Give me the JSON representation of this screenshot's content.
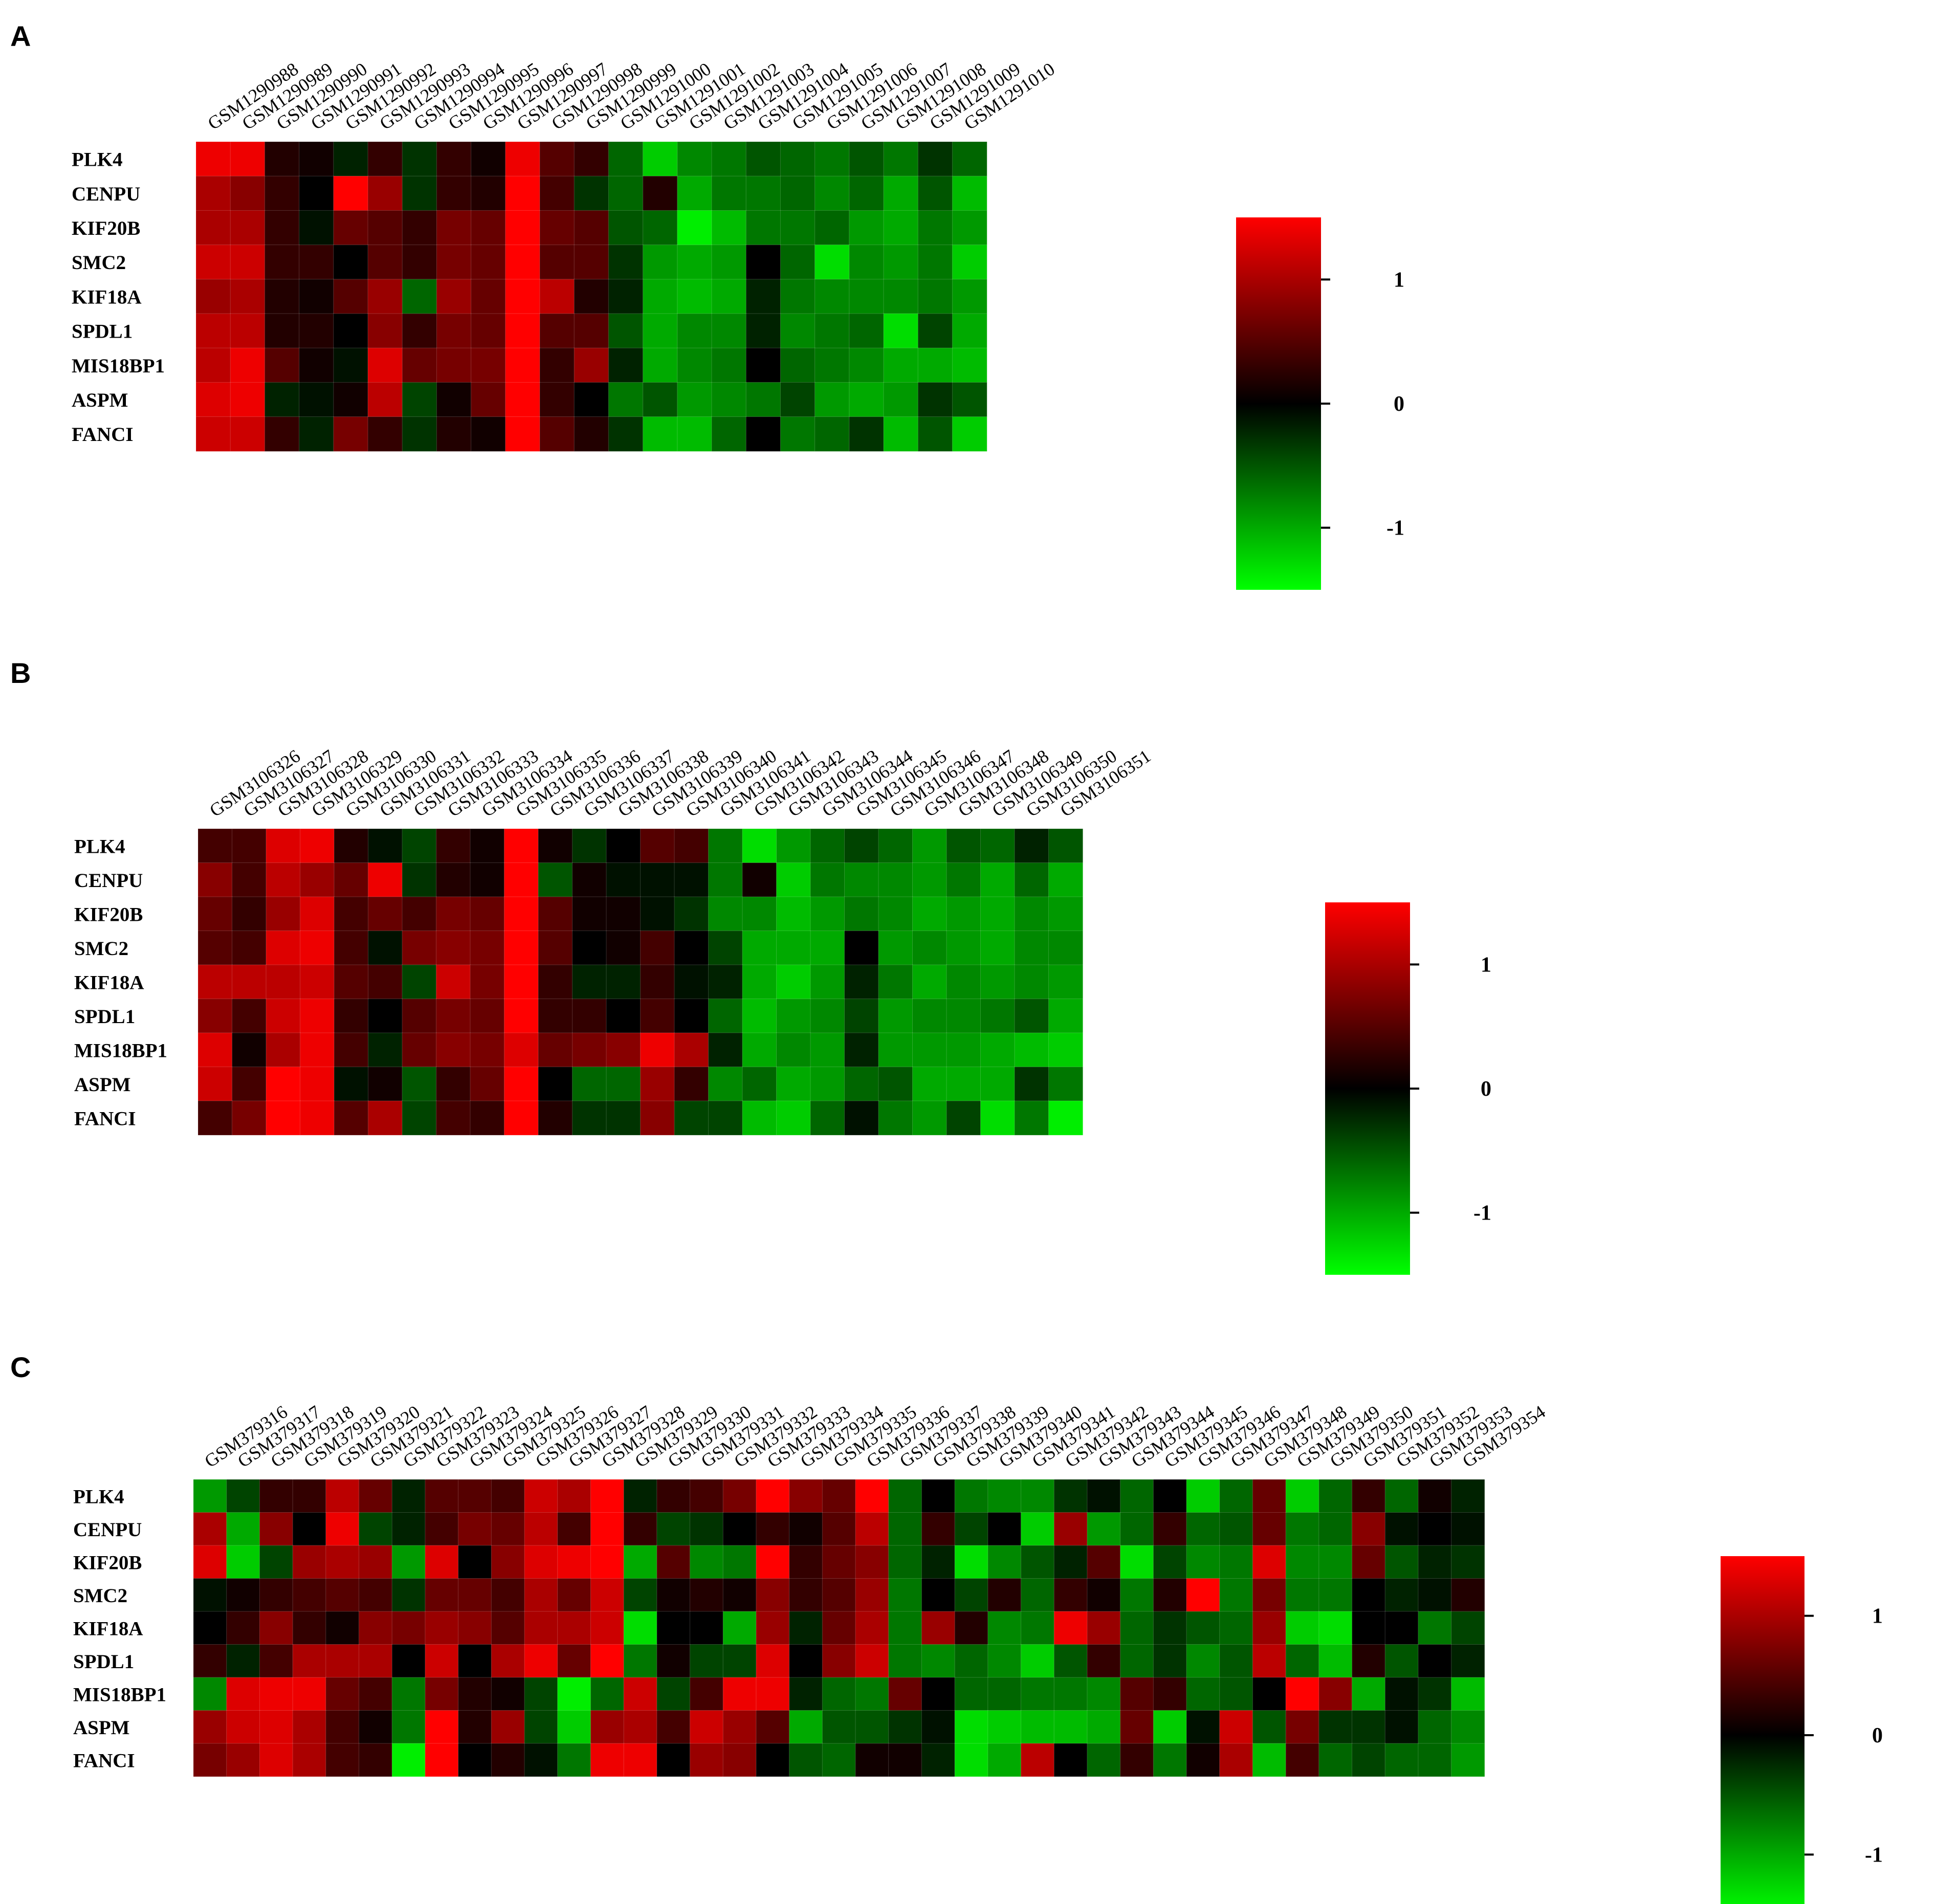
{
  "colors": {
    "high": "#ff0000",
    "mid": "#000000",
    "low": "#00ff00"
  },
  "rows": [
    "PLK4",
    "CENPU",
    "KIF20B",
    "SMC2",
    "KIF18A",
    "SPDL1",
    "MIS18BP1",
    "ASPM",
    "FANCI"
  ],
  "chart_data": [
    {
      "type": "heatmap",
      "panel": "A",
      "columns": [
        "GSM1290988",
        "GSM1290989",
        "GSM1290990",
        "GSM1290991",
        "GSM1290992",
        "GSM1290993",
        "GSM1290994",
        "GSM1290995",
        "GSM1290996",
        "GSM1290997",
        "GSM1290998",
        "GSM1290999",
        "GSM1291000",
        "GSM1291001",
        "GSM1291002",
        "GSM1291003",
        "GSM1291004",
        "GSM1291005",
        "GSM1291006",
        "GSM1291007",
        "GSM1291008",
        "GSM1291009",
        "GSM1291010"
      ],
      "values": [
        [
          1.4,
          1.4,
          0.2,
          0.1,
          -0.2,
          0.3,
          -0.3,
          0.3,
          0.1,
          1.4,
          0.5,
          0.3,
          -0.6,
          -1.2,
          -0.8,
          -0.7,
          -0.5,
          -0.6,
          -0.7,
          -0.5,
          -0.7,
          -0.3,
          -0.6
        ],
        [
          1.0,
          0.8,
          0.3,
          0.0,
          1.5,
          0.9,
          -0.3,
          0.3,
          0.2,
          1.5,
          0.4,
          -0.3,
          -0.6,
          0.2,
          -1.0,
          -0.7,
          -0.7,
          -0.6,
          -0.8,
          -0.6,
          -1.0,
          -0.5,
          -1.1
        ],
        [
          1.0,
          1.0,
          0.3,
          -0.1,
          0.6,
          0.5,
          0.3,
          0.7,
          0.6,
          1.5,
          0.6,
          0.5,
          -0.5,
          -0.6,
          -1.4,
          -1.1,
          -0.7,
          -0.7,
          -0.6,
          -0.9,
          -1.0,
          -0.7,
          -0.9
        ],
        [
          1.2,
          1.2,
          0.3,
          0.3,
          0.0,
          0.5,
          0.3,
          0.7,
          0.6,
          1.5,
          0.5,
          0.5,
          -0.3,
          -0.9,
          -1.0,
          -0.9,
          0.0,
          -0.6,
          -1.3,
          -0.8,
          -0.9,
          -0.7,
          -1.2
        ],
        [
          0.9,
          1.0,
          0.2,
          0.1,
          0.5,
          0.9,
          -0.6,
          0.9,
          0.6,
          1.5,
          1.1,
          0.2,
          -0.2,
          -1.0,
          -1.1,
          -1.0,
          -0.2,
          -0.7,
          -0.8,
          -0.8,
          -0.8,
          -0.7,
          -0.9
        ],
        [
          1.1,
          1.1,
          0.2,
          0.2,
          0.0,
          0.8,
          0.3,
          0.7,
          0.6,
          1.5,
          0.5,
          0.5,
          -0.5,
          -1.0,
          -0.8,
          -0.8,
          -0.2,
          -0.8,
          -0.7,
          -0.6,
          -1.3,
          -0.4,
          -1.0
        ],
        [
          1.1,
          1.4,
          0.5,
          0.1,
          -0.1,
          1.3,
          0.6,
          0.7,
          0.7,
          1.5,
          0.3,
          0.9,
          -0.2,
          -1.0,
          -0.8,
          -0.7,
          0.0,
          -0.6,
          -0.7,
          -0.8,
          -1.0,
          -1.0,
          -1.1
        ],
        [
          1.3,
          1.4,
          -0.2,
          -0.1,
          0.1,
          1.1,
          -0.4,
          0.1,
          0.6,
          1.5,
          0.3,
          0.0,
          -0.7,
          -0.5,
          -0.9,
          -0.8,
          -0.7,
          -0.4,
          -0.9,
          -1.0,
          -0.9,
          -0.3,
          -0.5
        ],
        [
          1.2,
          1.2,
          0.3,
          -0.2,
          0.7,
          0.3,
          -0.3,
          0.2,
          0.1,
          1.5,
          0.5,
          0.2,
          -0.3,
          -1.1,
          -1.1,
          -0.6,
          0.0,
          -0.7,
          -0.6,
          -0.3,
          -1.1,
          -0.5,
          -1.2
        ]
      ],
      "legend_ticks": [
        "1",
        "0",
        "-1"
      ]
    },
    {
      "type": "heatmap",
      "panel": "B",
      "columns": [
        "GSM3106326",
        "GSM3106327",
        "GSM3106328",
        "GSM3106329",
        "GSM3106330",
        "GSM3106331",
        "GSM3106332",
        "GSM3106333",
        "GSM3106334",
        "GSM3106335",
        "GSM3106336",
        "GSM3106337",
        "GSM3106338",
        "GSM3106339",
        "GSM3106340",
        "GSM3106341",
        "GSM3106342",
        "GSM3106343",
        "GSM3106344",
        "GSM3106345",
        "GSM3106346",
        "GSM3106347",
        "GSM3106348",
        "GSM3106349",
        "GSM3106350",
        "GSM3106351"
      ],
      "values": [
        [
          0.4,
          0.4,
          1.3,
          1.4,
          0.2,
          -0.1,
          -0.4,
          0.3,
          0.1,
          1.5,
          0.1,
          -0.3,
          0.0,
          0.5,
          0.4,
          -0.7,
          -1.3,
          -0.9,
          -0.6,
          -0.4,
          -0.6,
          -0.9,
          -0.5,
          -0.6,
          -0.2,
          -0.5
        ],
        [
          0.8,
          0.4,
          1.1,
          0.9,
          0.6,
          1.4,
          -0.3,
          0.2,
          0.1,
          1.5,
          -0.5,
          0.1,
          -0.1,
          -0.1,
          -0.1,
          -0.7,
          0.1,
          -1.2,
          -0.7,
          -0.8,
          -0.8,
          -0.9,
          -0.7,
          -1.0,
          -0.6,
          -1.0
        ],
        [
          0.6,
          0.3,
          0.9,
          1.3,
          0.4,
          0.6,
          0.4,
          0.7,
          0.6,
          1.5,
          0.5,
          0.1,
          0.1,
          -0.1,
          -0.3,
          -0.8,
          -0.8,
          -1.1,
          -0.9,
          -0.7,
          -0.8,
          -1.0,
          -0.9,
          -1.0,
          -0.8,
          -0.9
        ],
        [
          0.5,
          0.4,
          1.3,
          1.4,
          0.4,
          -0.1,
          0.7,
          0.8,
          0.7,
          1.5,
          0.5,
          0.0,
          0.1,
          0.4,
          0.0,
          -0.4,
          -1.0,
          -1.0,
          -1.0,
          0.0,
          -0.9,
          -0.8,
          -0.9,
          -1.0,
          -0.8,
          -0.8
        ],
        [
          1.1,
          1.1,
          1.1,
          1.2,
          0.5,
          0.4,
          -0.4,
          1.2,
          0.7,
          1.5,
          0.3,
          -0.2,
          -0.2,
          0.3,
          -0.1,
          -0.2,
          -1.0,
          -1.2,
          -0.9,
          -0.2,
          -0.7,
          -1.0,
          -0.8,
          -0.9,
          -0.8,
          -0.9
        ],
        [
          0.8,
          0.4,
          1.2,
          1.4,
          0.3,
          0.0,
          0.5,
          0.7,
          0.6,
          1.5,
          0.3,
          0.3,
          0.0,
          0.4,
          0.0,
          -0.6,
          -1.1,
          -0.9,
          -0.8,
          -0.4,
          -0.9,
          -0.8,
          -0.8,
          -0.7,
          -0.5,
          -1.0
        ],
        [
          1.3,
          0.1,
          1.0,
          1.4,
          0.4,
          -0.2,
          0.6,
          0.8,
          0.7,
          1.3,
          0.6,
          0.7,
          0.8,
          1.4,
          1.0,
          -0.2,
          -1.0,
          -0.8,
          -0.9,
          -0.2,
          -0.9,
          -0.9,
          -0.9,
          -1.0,
          -1.1,
          -1.2
        ],
        [
          1.2,
          0.4,
          1.5,
          1.4,
          -0.1,
          0.1,
          -0.5,
          0.3,
          0.6,
          1.5,
          0.0,
          -0.6,
          -0.6,
          0.9,
          0.3,
          -0.8,
          -0.6,
          -1.0,
          -0.9,
          -0.6,
          -0.5,
          -1.0,
          -1.0,
          -1.0,
          -0.3,
          -0.7
        ],
        [
          0.4,
          0.7,
          1.5,
          1.4,
          0.5,
          1.0,
          -0.4,
          0.4,
          0.3,
          1.5,
          0.2,
          -0.3,
          -0.3,
          0.8,
          -0.4,
          -0.4,
          -1.1,
          -1.2,
          -0.6,
          -0.1,
          -0.7,
          -0.9,
          -0.4,
          -1.3,
          -0.7,
          -1.4
        ]
      ],
      "legend_ticks": [
        "1",
        "0",
        "-1"
      ]
    },
    {
      "type": "heatmap",
      "panel": "C",
      "columns": [
        "GSM379316",
        "GSM379317",
        "GSM379318",
        "GSM379319",
        "GSM379320",
        "GSM379321",
        "GSM379322",
        "GSM379323",
        "GSM379324",
        "GSM379325",
        "GSM379326",
        "GSM379327",
        "GSM379328",
        "GSM379329",
        "GSM379330",
        "GSM379331",
        "GSM379332",
        "GSM379333",
        "GSM379334",
        "GSM379335",
        "GSM379336",
        "GSM379337",
        "GSM379338",
        "GSM379339",
        "GSM379340",
        "GSM379341",
        "GSM379342",
        "GSM379343",
        "GSM379344",
        "GSM379345",
        "GSM379346",
        "GSM379347",
        "GSM379348",
        "GSM379349",
        "GSM379350",
        "GSM379351",
        "GSM379352",
        "GSM379353",
        "GSM379354"
      ],
      "values": [
        [
          -0.9,
          -0.4,
          0.3,
          0.3,
          1.1,
          0.6,
          -0.2,
          0.5,
          0.5,
          0.4,
          1.2,
          1.0,
          1.5,
          -0.2,
          0.3,
          0.4,
          0.7,
          1.5,
          0.8,
          0.6,
          1.5,
          -0.6,
          0.0,
          -0.7,
          -0.8,
          -0.8,
          -0.3,
          -0.1,
          -0.6,
          0.0,
          -1.2,
          -0.6,
          0.6,
          -1.2,
          -0.6,
          0.3,
          -0.6,
          0.1,
          -0.2
        ],
        [
          1.0,
          -1.0,
          0.8,
          0.0,
          1.4,
          -0.4,
          -0.2,
          0.4,
          0.7,
          0.6,
          1.1,
          0.4,
          1.5,
          0.3,
          -0.4,
          -0.3,
          0.0,
          0.3,
          0.1,
          0.5,
          1.1,
          -0.6,
          0.3,
          -0.4,
          0.0,
          -1.2,
          0.9,
          -0.9,
          -0.6,
          0.3,
          -0.6,
          -0.5,
          0.6,
          -0.7,
          -0.6,
          0.8,
          -0.1,
          0.0,
          -0.1
        ],
        [
          1.3,
          -1.2,
          -0.4,
          0.9,
          1.0,
          0.9,
          -0.9,
          1.3,
          0.0,
          0.8,
          1.3,
          1.4,
          1.5,
          -1.0,
          0.5,
          -0.8,
          -0.7,
          1.5,
          0.3,
          0.6,
          0.8,
          -0.6,
          -0.2,
          -1.3,
          -0.8,
          -0.5,
          -0.2,
          0.5,
          -1.3,
          -0.4,
          -0.8,
          -0.7,
          1.3,
          -0.8,
          -0.8,
          0.6,
          -0.5,
          -0.2,
          -0.3
        ],
        [
          -0.1,
          0.1,
          0.3,
          0.4,
          0.5,
          0.4,
          -0.3,
          0.6,
          0.6,
          0.4,
          1.0,
          0.6,
          1.2,
          -0.4,
          0.1,
          0.2,
          0.1,
          0.8,
          0.3,
          0.5,
          0.9,
          -0.7,
          0.0,
          -0.4,
          0.2,
          -0.6,
          0.3,
          0.1,
          -0.7,
          0.2,
          1.5,
          -0.7,
          0.7,
          -0.7,
          -0.7,
          0.0,
          -0.2,
          -0.1,
          0.2
        ],
        [
          0.0,
          0.3,
          0.8,
          0.3,
          0.1,
          0.8,
          0.7,
          0.9,
          0.8,
          0.5,
          1.0,
          1.0,
          1.2,
          -1.3,
          0.0,
          0.0,
          -1.0,
          0.9,
          -0.2,
          0.6,
          1.0,
          -0.7,
          0.9,
          0.2,
          -0.8,
          -0.7,
          1.4,
          0.9,
          -0.6,
          -0.3,
          -0.5,
          -0.6,
          0.9,
          -1.2,
          -1.3,
          0.0,
          0.0,
          -0.7,
          -0.4
        ],
        [
          0.3,
          -0.2,
          0.4,
          1.0,
          1.0,
          1.0,
          0.0,
          1.2,
          0.0,
          1.0,
          1.4,
          0.6,
          1.5,
          -0.7,
          0.1,
          -0.4,
          -0.4,
          1.3,
          0.0,
          0.8,
          1.2,
          -0.7,
          -0.8,
          -0.6,
          -0.8,
          -1.2,
          -0.5,
          0.3,
          -0.6,
          -0.3,
          -0.8,
          -0.5,
          1.1,
          -0.6,
          -1.1,
          0.2,
          -0.5,
          0.0,
          -0.2
        ],
        [
          -0.8,
          1.3,
          1.4,
          1.4,
          0.6,
          0.4,
          -0.7,
          0.7,
          0.2,
          0.1,
          -0.4,
          -1.4,
          -0.6,
          1.2,
          -0.4,
          0.4,
          1.4,
          1.4,
          -0.2,
          -0.6,
          -0.7,
          0.6,
          0.0,
          -0.6,
          -0.6,
          -0.7,
          -0.7,
          -0.8,
          0.5,
          0.3,
          -0.6,
          -0.5,
          0.0,
          1.5,
          0.8,
          -1.0,
          -0.1,
          -0.3,
          -1.1
        ],
        [
          0.9,
          1.2,
          1.3,
          1.0,
          0.4,
          0.1,
          -0.7,
          1.5,
          0.2,
          0.9,
          -0.4,
          -1.2,
          0.9,
          1.0,
          0.4,
          1.2,
          0.9,
          0.5,
          -1.0,
          -0.5,
          -0.5,
          -0.3,
          -0.1,
          -1.3,
          -1.2,
          -1.1,
          -1.1,
          -1.0,
          0.6,
          -1.2,
          -0.1,
          1.2,
          -0.5,
          0.7,
          -0.3,
          -0.3,
          -0.1,
          -0.6,
          -0.8
        ],
        [
          0.7,
          0.9,
          1.3,
          1.0,
          0.4,
          0.3,
          -1.4,
          1.5,
          0.0,
          0.2,
          -0.1,
          -0.7,
          1.4,
          1.4,
          0.0,
          0.9,
          0.8,
          0.0,
          -0.5,
          -0.6,
          0.1,
          0.1,
          -0.2,
          -1.3,
          -1.0,
          1.1,
          0.0,
          -0.6,
          0.3,
          -0.7,
          0.1,
          1.0,
          -1.1,
          0.4,
          -0.6,
          -0.4,
          -0.6,
          -0.6,
          -0.9
        ]
      ],
      "legend_ticks": [
        "1",
        "0",
        "-1"
      ]
    }
  ]
}
